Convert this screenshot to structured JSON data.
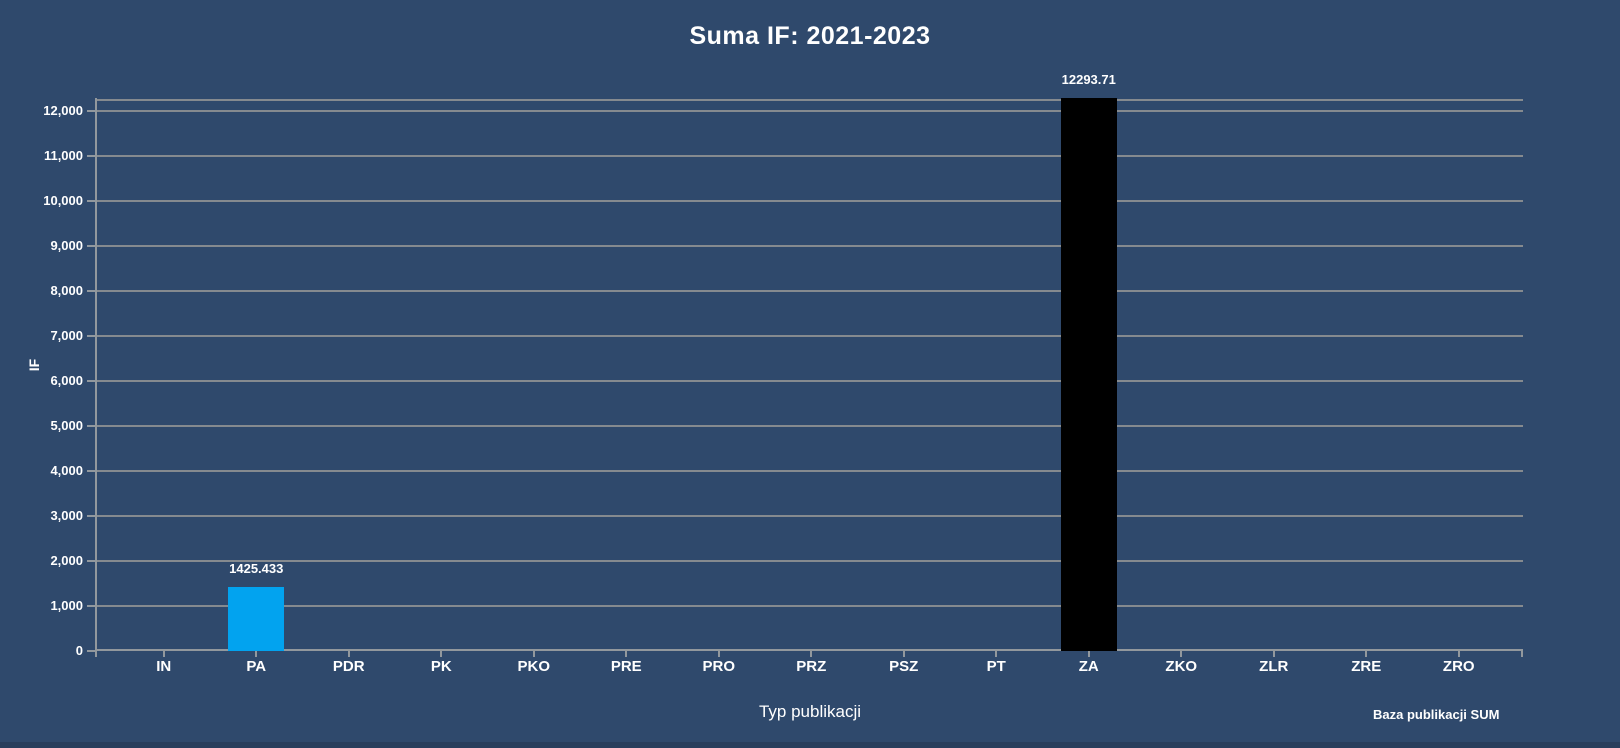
{
  "chart_data": {
    "type": "bar",
    "title": "Suma IF: 2021-2023",
    "xlabel": "Typ publikacji",
    "ylabel": "IF",
    "footer": "Baza publikacji SUM",
    "categories": [
      "IN",
      "PA",
      "PDR",
      "PK",
      "PKO",
      "PRE",
      "PRO",
      "PRZ",
      "PSZ",
      "PT",
      "ZA",
      "ZKO",
      "ZLR",
      "ZRE",
      "ZRO"
    ],
    "values": [
      0,
      1425.433,
      0,
      0,
      0,
      0,
      0,
      0,
      0,
      0,
      12293.71,
      0,
      0,
      0,
      0
    ],
    "value_labels": [
      "",
      "1425.433",
      "",
      "",
      "",
      "",
      "",
      "",
      "",
      "",
      "12293.71",
      "",
      "",
      "",
      ""
    ],
    "bar_colors": [
      "",
      "#02A3EF",
      "",
      "",
      "",
      "",
      "",
      "",
      "",
      "",
      "#000000",
      "",
      "",
      "",
      ""
    ],
    "y_axis": {
      "min": 0,
      "max": 12293.71,
      "tick_interval": 1000,
      "tick_labels": [
        "0",
        "1,000",
        "2,000",
        "3,000",
        "4,000",
        "5,000",
        "6,000",
        "7,000",
        "8,000",
        "9,000",
        "10,000",
        "11,000",
        "12,000"
      ]
    },
    "grid": true,
    "legend": false,
    "colors": {
      "background": "#2F496C",
      "grid": "#858A8F",
      "axis": "#92989D",
      "text": "#FFFFFF",
      "bar_pa": "#02A3EF",
      "bar_za": "#000000",
      "bottom_strip": "#293E5C"
    }
  }
}
